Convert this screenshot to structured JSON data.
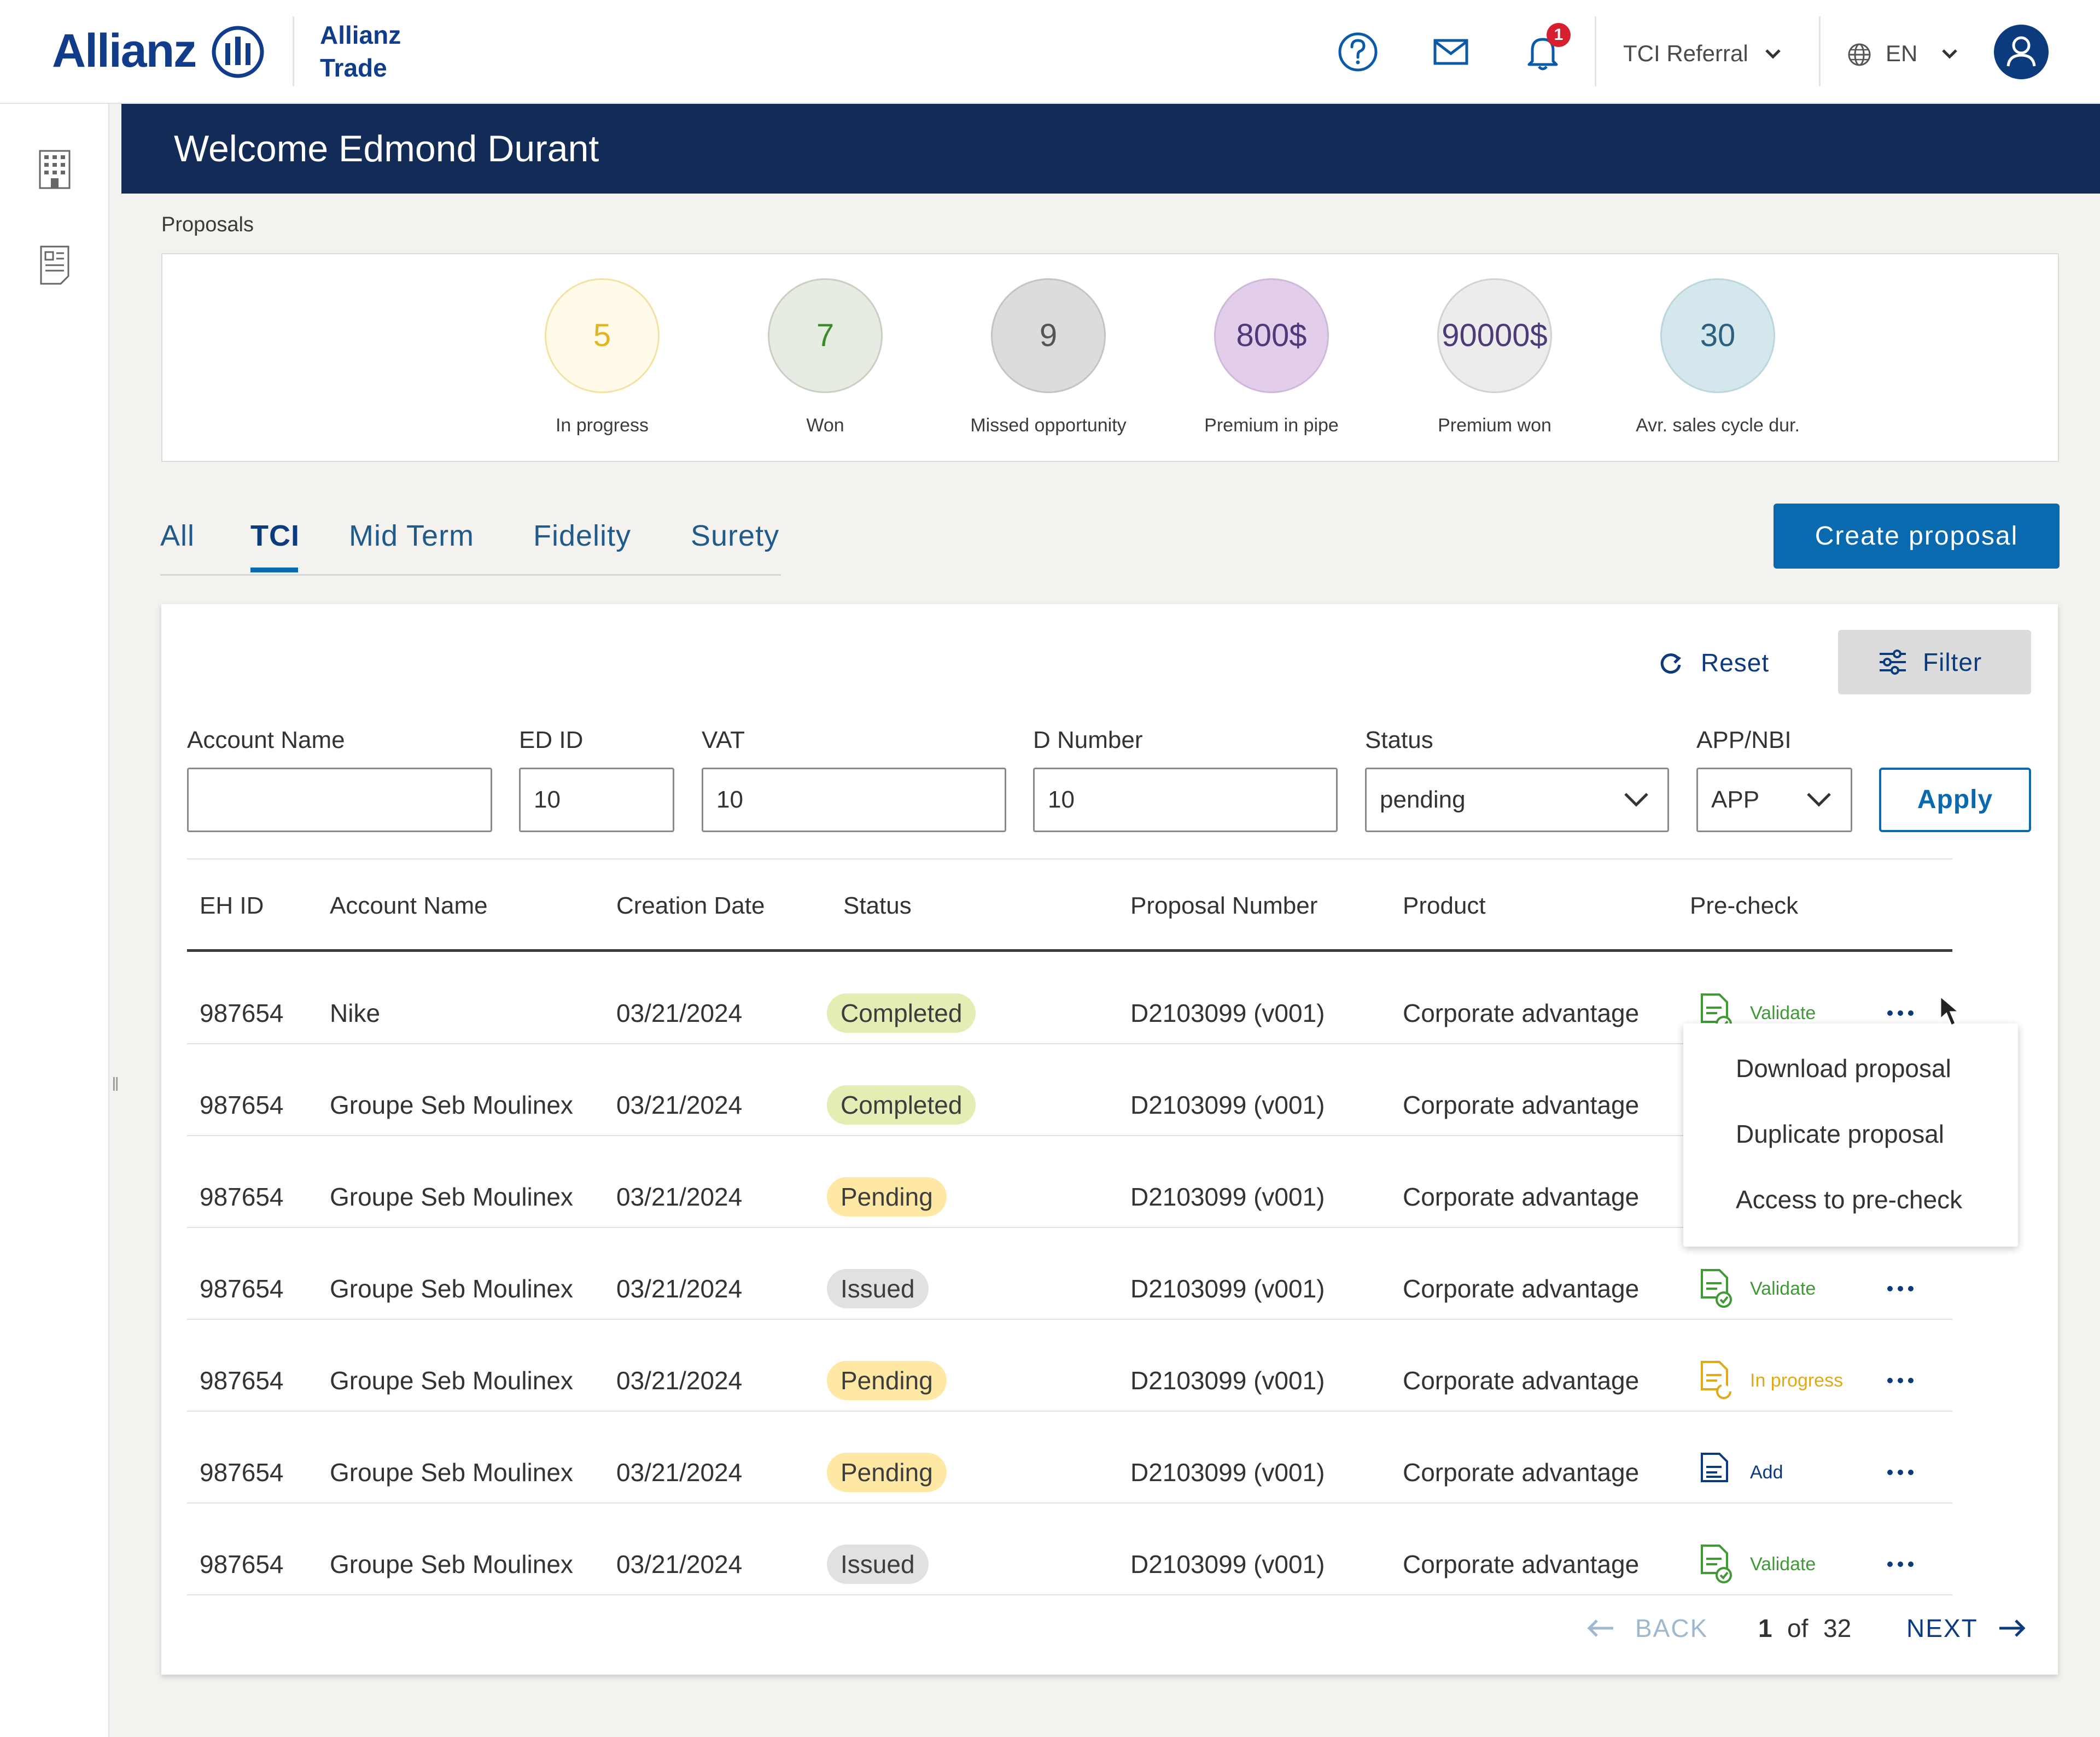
{
  "brand": {
    "name": "Allianz",
    "sub": "Allianz Trade"
  },
  "header": {
    "notification_count": "1",
    "referral": "TCI Referral",
    "language": "EN"
  },
  "banner": {
    "title": "Welcome Edmond Durant"
  },
  "proposals": {
    "label": "Proposals",
    "stats": [
      {
        "value": "5",
        "label": "In progress",
        "fill": "#fffbe8",
        "border": "#f3e2a4",
        "color": "#e4b31e"
      },
      {
        "value": "7",
        "label": "Won",
        "fill": "#e7ece2",
        "border": "#c9cfc4",
        "color": "#3f8a2c"
      },
      {
        "value": "9",
        "label": "Missed opportunity",
        "fill": "#dcdcdc",
        "border": "#c4c4c4",
        "color": "#555555"
      },
      {
        "value": "800$",
        "label": "Premium in pipe",
        "fill": "#e2cdea",
        "border": "#cfb8da",
        "color": "#4d3a78"
      },
      {
        "value": "90000$",
        "label": "Premium won",
        "fill": "#ececec",
        "border": "#d2d2d2",
        "color": "#4d3a78"
      },
      {
        "value": "30",
        "label": "Avr. sales cycle dur.",
        "fill": "#d4e7ec",
        "border": "#bcd6dd",
        "color": "#2d6080"
      }
    ]
  },
  "tabs": [
    "All",
    "TCI",
    "Mid Term",
    "Fidelity",
    "Surety"
  ],
  "active_tab": "TCI",
  "create_button": "Create proposal",
  "filters": {
    "reset_label": "Reset",
    "filter_label": "Filter",
    "apply_label": "Apply",
    "fields": [
      {
        "label": "Account Name",
        "value": ""
      },
      {
        "label": "ED ID",
        "value": "10"
      },
      {
        "label": "VAT",
        "value": "10"
      },
      {
        "label": "D Number",
        "value": "10"
      },
      {
        "label": "Status",
        "value": "pending"
      },
      {
        "label": "APP/NBI",
        "value": "APP"
      }
    ]
  },
  "table": {
    "headers": [
      "EH ID",
      "Account Name",
      "Creation Date",
      "Status",
      "Proposal Number",
      "Product",
      "Pre-check"
    ],
    "rows": [
      {
        "id": "987654",
        "account": "Nike",
        "date": "03/21/2024",
        "status": "Completed",
        "proposal": "D2103099 (v001)",
        "product": "Corporate advantage",
        "precheck": "Validate"
      },
      {
        "id": "987654",
        "account": "Groupe Seb Moulinex",
        "date": "03/21/2024",
        "status": "Completed",
        "proposal": "D2103099 (v001)",
        "product": "Corporate advantage",
        "precheck": ""
      },
      {
        "id": "987654",
        "account": "Groupe Seb Moulinex",
        "date": "03/21/2024",
        "status": "Pending",
        "proposal": "D2103099 (v001)",
        "product": "Corporate advantage",
        "precheck": ""
      },
      {
        "id": "987654",
        "account": "Groupe Seb Moulinex",
        "date": "03/21/2024",
        "status": "Issued",
        "proposal": "D2103099 (v001)",
        "product": "Corporate advantage",
        "precheck": "Validate"
      },
      {
        "id": "987654",
        "account": "Groupe Seb Moulinex",
        "date": "03/21/2024",
        "status": "Pending",
        "proposal": "D2103099 (v001)",
        "product": "Corporate advantage",
        "precheck": "In progress"
      },
      {
        "id": "987654",
        "account": "Groupe Seb Moulinex",
        "date": "03/21/2024",
        "status": "Pending",
        "proposal": "D2103099 (v001)",
        "product": "Corporate advantage",
        "precheck": "Add"
      },
      {
        "id": "987654",
        "account": "Groupe Seb Moulinex",
        "date": "03/21/2024",
        "status": "Issued",
        "proposal": "D2103099 (v001)",
        "product": "Corporate advantage",
        "precheck": "Validate"
      }
    ]
  },
  "precheck_colors": {
    "Validate": "#3f9a36",
    "In progress": "#e3a817",
    "Add": "#0b3b7c"
  },
  "row_menu": [
    "Download proposal",
    "Duplicate proposal",
    "Access to pre-check"
  ],
  "pagination": {
    "back": "BACK",
    "current": "1",
    "of": "of",
    "total": "32",
    "next": "NEXT"
  },
  "icons": {
    "help": "help-icon",
    "mail": "mail-icon",
    "bell": "bell-icon",
    "globe": "globe-icon",
    "user": "user-icon",
    "building": "building-icon",
    "document": "document-icon",
    "reset": "refresh-icon",
    "filter": "sliders-icon",
    "more": "more-icon"
  }
}
